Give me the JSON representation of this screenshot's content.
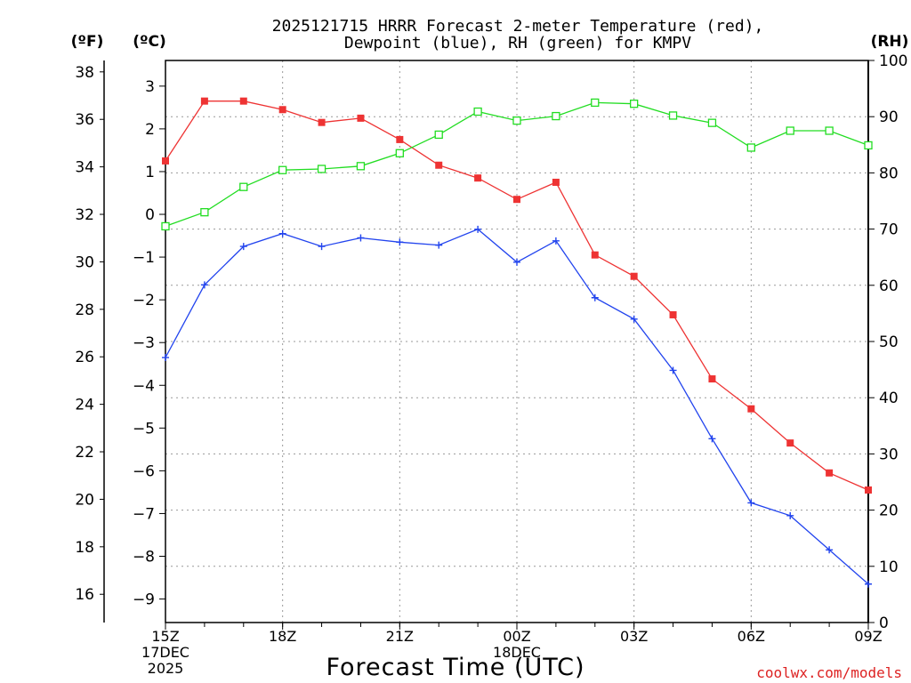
{
  "chart_data": {
    "type": "line",
    "title": [
      "2025121715 HRRR Forecast 2-meter Temperature (red),",
      "Dewpoint (blue), RH (green) for KMPV"
    ],
    "xlabel": "Forecast Time (UTC)",
    "credit": "coolwx.com/models",
    "units": {
      "fahrenheit": "(ºF)",
      "celsius": "(ºC)",
      "rh": "(RH)"
    },
    "x_hours": [
      0,
      1,
      2,
      3,
      4,
      5,
      6,
      7,
      8,
      9,
      10,
      11,
      12,
      13,
      14,
      15,
      16,
      17,
      18
    ],
    "x_tick_labels": [
      {
        "hour": 0,
        "lines": [
          "15Z",
          "17DEC",
          "2025"
        ]
      },
      {
        "hour": 3,
        "lines": [
          "18Z"
        ]
      },
      {
        "hour": 6,
        "lines": [
          "21Z"
        ]
      },
      {
        "hour": 9,
        "lines": [
          "00Z",
          "18DEC"
        ]
      },
      {
        "hour": 12,
        "lines": [
          "03Z"
        ]
      },
      {
        "hour": 15,
        "lines": [
          "06Z"
        ]
      },
      {
        "hour": 18,
        "lines": [
          "09Z"
        ]
      }
    ],
    "celsius_axis": {
      "min": -9.55,
      "max": 3.6,
      "ticks": [
        3,
        2,
        1,
        0,
        -1,
        -2,
        -3,
        -4,
        -5,
        -6,
        -7,
        -8,
        -9
      ]
    },
    "fahrenheit_axis": {
      "ticks": [
        38,
        36,
        34,
        32,
        30,
        28,
        26,
        24,
        22,
        20,
        18,
        16
      ]
    },
    "rh_axis": {
      "min": 0,
      "max": 100,
      "ticks": [
        0,
        10,
        20,
        30,
        40,
        50,
        60,
        70,
        80,
        90,
        100
      ]
    },
    "series": [
      {
        "name": "Temperature",
        "color": "#ee3333",
        "marker": "filled-square",
        "axis": "celsius",
        "values": [
          1.25,
          2.65,
          2.65,
          2.45,
          2.15,
          2.25,
          1.75,
          1.15,
          0.85,
          0.35,
          0.75,
          -0.95,
          -1.45,
          -2.35,
          -3.85,
          -4.55,
          -5.35,
          -6.05,
          -6.45
        ]
      },
      {
        "name": "Dewpoint",
        "color": "#2244ee",
        "marker": "plus",
        "axis": "celsius",
        "values": [
          -3.35,
          -1.65,
          -0.75,
          -0.45,
          -0.75,
          -0.55,
          -0.65,
          -0.72,
          -0.35,
          -1.12,
          -0.62,
          -1.95,
          -2.45,
          -3.65,
          -5.25,
          -6.75,
          -7.05,
          -7.85,
          -8.65
        ]
      },
      {
        "name": "RH",
        "color": "#22dd22",
        "marker": "open-square",
        "axis": "rh",
        "values": [
          70.5,
          73,
          77.5,
          80.5,
          80.7,
          81.2,
          83.5,
          86.8,
          90.9,
          89.3,
          90.1,
          92.5,
          92.3,
          90.2,
          88.9,
          84.5,
          87.5,
          87.5,
          84.9
        ]
      }
    ]
  }
}
